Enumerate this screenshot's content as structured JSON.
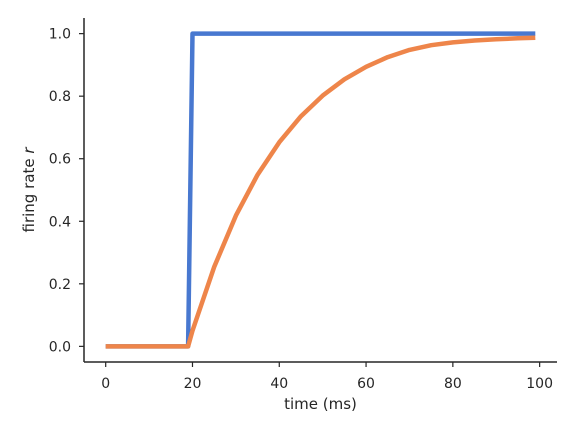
{
  "chart_data": {
    "type": "line",
    "xlabel": "time (ms)",
    "ylabel_text": "firing rate ",
    "ylabel_var": "r",
    "xlim": [
      -5,
      104
    ],
    "ylim": [
      -0.05,
      1.05
    ],
    "xticks": [
      0,
      20,
      40,
      60,
      80,
      100
    ],
    "yticks": [
      0.0,
      0.2,
      0.4,
      0.6,
      0.8,
      1.0
    ],
    "ytick_labels": [
      "0.0",
      "0.2",
      "0.4",
      "0.6",
      "0.8",
      "1.0"
    ],
    "grid": false,
    "series": [
      {
        "color": "#4878d0",
        "x": [
          0,
          19,
          20,
          99
        ],
        "y": [
          0.0,
          0.0,
          1.0,
          1.0
        ]
      },
      {
        "color": "#ee854a",
        "x": [
          0,
          19,
          20,
          25,
          30,
          35,
          40,
          45,
          50,
          55,
          60,
          65,
          70,
          75,
          80,
          85,
          90,
          95,
          99
        ],
        "y": [
          0.0,
          0.0,
          0.05,
          0.254,
          0.418,
          0.549,
          0.653,
          0.736,
          0.802,
          0.854,
          0.894,
          0.925,
          0.948,
          0.963,
          0.972,
          0.978,
          0.982,
          0.985,
          0.987
        ]
      }
    ]
  }
}
